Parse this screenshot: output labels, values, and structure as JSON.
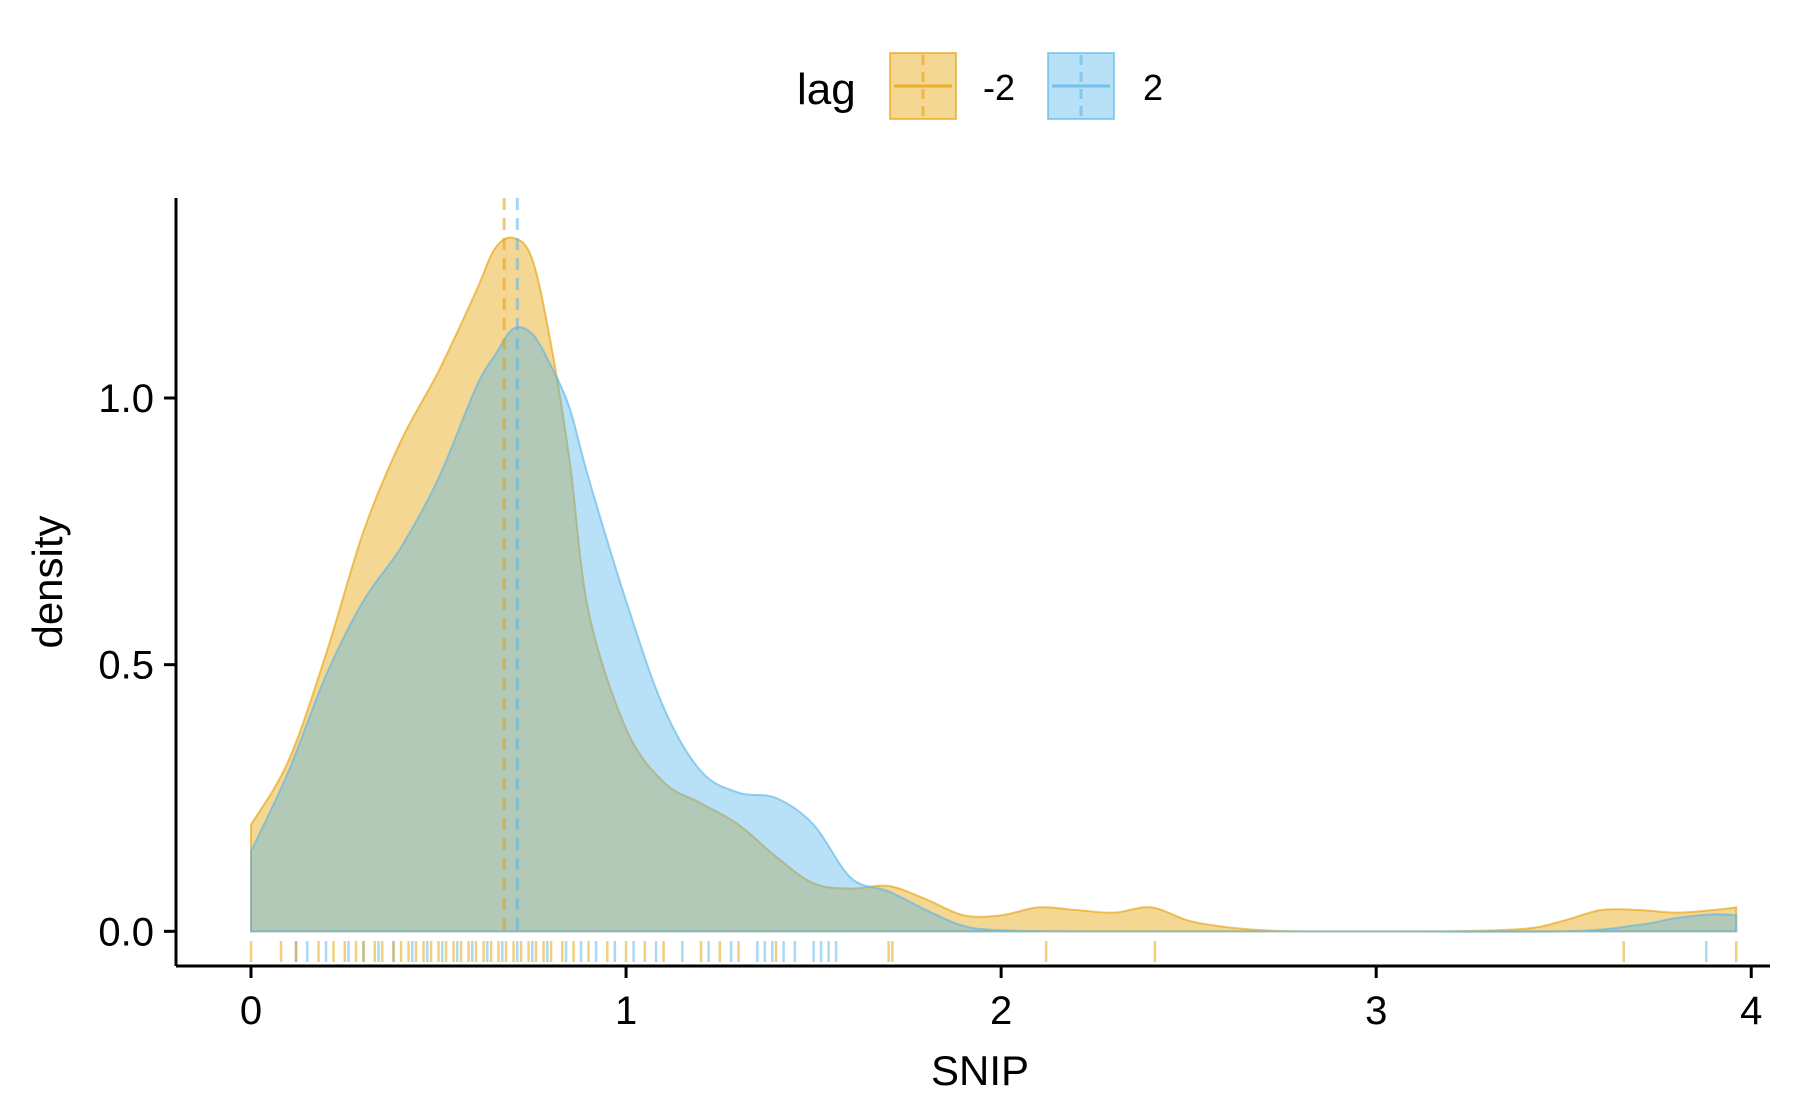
{
  "chart_data": {
    "type": "area",
    "title": "",
    "xlabel": "SNIP",
    "ylabel": "density",
    "xlim": [
      -0.2,
      4.05
    ],
    "ylim": [
      -0.065,
      1.375
    ],
    "x_ticks": [
      0,
      1,
      2,
      3,
      4
    ],
    "x_tick_labels": [
      "0",
      "1",
      "2",
      "3",
      "4"
    ],
    "y_ticks": [
      0.0,
      0.5,
      1.0
    ],
    "y_tick_labels": [
      "0.0",
      "0.5",
      "1.0"
    ],
    "grid": false,
    "legend": {
      "title": "lag",
      "placement": "top"
    },
    "series": [
      {
        "name": "-2",
        "color": "#E69F00",
        "mean": 0.675,
        "x": [
          0,
          0.1,
          0.2,
          0.3,
          0.4,
          0.5,
          0.6,
          0.65,
          0.7,
          0.75,
          0.8,
          0.85,
          0.9,
          1.0,
          1.1,
          1.2,
          1.3,
          1.4,
          1.5,
          1.6,
          1.7,
          1.8,
          1.9,
          2.0,
          2.1,
          2.2,
          2.3,
          2.4,
          2.5,
          2.6,
          2.7,
          2.8,
          3.0,
          3.2,
          3.4,
          3.5,
          3.6,
          3.7,
          3.8,
          3.9,
          3.96
        ],
        "values": [
          0.2,
          0.32,
          0.52,
          0.75,
          0.92,
          1.05,
          1.2,
          1.28,
          1.3,
          1.26,
          1.1,
          0.88,
          0.6,
          0.38,
          0.28,
          0.24,
          0.2,
          0.14,
          0.09,
          0.08,
          0.085,
          0.06,
          0.03,
          0.03,
          0.045,
          0.04,
          0.035,
          0.045,
          0.02,
          0.008,
          0.002,
          0.0,
          0.0,
          0.0,
          0.005,
          0.02,
          0.04,
          0.04,
          0.035,
          0.04,
          0.045
        ]
      },
      {
        "name": "2",
        "color": "#56B4E9",
        "mean": 0.71,
        "x": [
          0,
          0.1,
          0.2,
          0.3,
          0.4,
          0.5,
          0.6,
          0.65,
          0.7,
          0.75,
          0.8,
          0.85,
          0.9,
          1.0,
          1.1,
          1.2,
          1.3,
          1.4,
          1.5,
          1.6,
          1.7,
          1.8,
          1.9,
          2.0,
          2.2,
          2.5,
          3.0,
          3.5,
          3.7,
          3.8,
          3.9,
          3.96
        ],
        "values": [
          0.15,
          0.3,
          0.48,
          0.62,
          0.72,
          0.85,
          1.02,
          1.08,
          1.13,
          1.12,
          1.06,
          0.98,
          0.85,
          0.62,
          0.42,
          0.3,
          0.26,
          0.25,
          0.2,
          0.1,
          0.075,
          0.04,
          0.01,
          0.002,
          0.0,
          0.0,
          0.0,
          0.0,
          0.012,
          0.025,
          0.032,
          0.03
        ]
      }
    ],
    "rug": {
      "-2": [
        0.0,
        0.08,
        0.12,
        0.18,
        0.22,
        0.25,
        0.28,
        0.3,
        0.33,
        0.35,
        0.38,
        0.4,
        0.42,
        0.44,
        0.46,
        0.48,
        0.5,
        0.52,
        0.54,
        0.56,
        0.58,
        0.6,
        0.62,
        0.64,
        0.66,
        0.68,
        0.7,
        0.72,
        0.74,
        0.76,
        0.78,
        0.8,
        0.83,
        0.86,
        0.9,
        0.95,
        1.0,
        1.05,
        1.1,
        1.2,
        1.25,
        1.3,
        1.4,
        1.7,
        1.71,
        2.12,
        2.41,
        3.66,
        3.96
      ],
      "2": [
        0.12,
        0.15,
        0.2,
        0.26,
        0.3,
        0.34,
        0.38,
        0.43,
        0.47,
        0.51,
        0.55,
        0.59,
        0.63,
        0.67,
        0.71,
        0.75,
        0.79,
        0.84,
        0.88,
        0.92,
        0.97,
        1.02,
        1.08,
        1.15,
        1.22,
        1.28,
        1.35,
        1.37,
        1.39,
        1.42,
        1.45,
        1.5,
        1.52,
        1.54,
        1.56,
        3.88
      ]
    }
  }
}
